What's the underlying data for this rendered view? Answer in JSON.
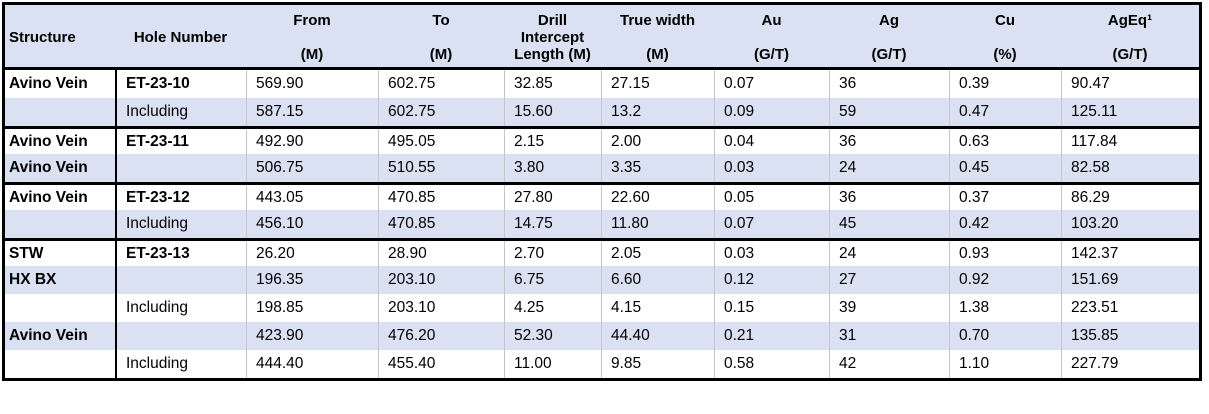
{
  "colors": {
    "header_bg": "#d9e1f2",
    "alt_row_bg": "#d9e1f2",
    "row_bg": "#ffffff",
    "border": "#000000",
    "gridline": "#c6c6c6"
  },
  "table": {
    "columns": [
      {
        "id": "structure",
        "lines": [
          "Structure"
        ]
      },
      {
        "id": "hole",
        "lines": [
          "Hole Number"
        ]
      },
      {
        "id": "from",
        "lines": [
          "From",
          "(M)"
        ]
      },
      {
        "id": "to",
        "lines": [
          "To",
          "(M)"
        ]
      },
      {
        "id": "intercept",
        "lines": [
          "Drill",
          "Intercept",
          "Length (M)"
        ]
      },
      {
        "id": "truewidth",
        "lines": [
          "True width",
          "(M)"
        ]
      },
      {
        "id": "au",
        "lines": [
          "Au",
          "(G/T)"
        ]
      },
      {
        "id": "ag",
        "lines": [
          "Ag",
          "(G/T)"
        ]
      },
      {
        "id": "cu",
        "lines": [
          "Cu",
          "(%)"
        ]
      },
      {
        "id": "ageq",
        "lines": [
          "AgEq¹",
          "(G/T)"
        ]
      }
    ],
    "rows": [
      {
        "structure": "Avino Vein",
        "hole": "ET-23-10",
        "from": "569.90",
        "to": "602.75",
        "intercept": "32.85",
        "truewidth": "27.15",
        "au": "0.07",
        "ag": "36",
        "cu": "0.39",
        "ageq": "90.47"
      },
      {
        "structure": "",
        "hole": "Including",
        "from": "587.15",
        "to": "602.75",
        "intercept": "15.60",
        "truewidth": "13.2",
        "au": "0.09",
        "ag": "59",
        "cu": "0.47",
        "ageq": "125.11"
      },
      {
        "structure": "Avino Vein",
        "hole": "ET-23-11",
        "from": "492.90",
        "to": "495.05",
        "intercept": "2.15",
        "truewidth": "2.00",
        "au": "0.04",
        "ag": "36",
        "cu": "0.63",
        "ageq": "117.84"
      },
      {
        "structure": "Avino Vein",
        "hole": "",
        "from": "506.75",
        "to": "510.55",
        "intercept": "3.80",
        "truewidth": "3.35",
        "au": "0.03",
        "ag": "24",
        "cu": "0.45",
        "ageq": "82.58"
      },
      {
        "structure": "Avino Vein",
        "hole": "ET-23-12",
        "from": "443.05",
        "to": "470.85",
        "intercept": "27.80",
        "truewidth": "22.60",
        "au": "0.05",
        "ag": "36",
        "cu": "0.37",
        "ageq": "86.29"
      },
      {
        "structure": "",
        "hole": "Including",
        "from": "456.10",
        "to": "470.85",
        "intercept": "14.75",
        "truewidth": "11.80",
        "au": "0.07",
        "ag": "45",
        "cu": "0.42",
        "ageq": "103.20"
      },
      {
        "structure": "STW",
        "hole": "ET-23-13",
        "from": "26.20",
        "to": "28.90",
        "intercept": "2.70",
        "truewidth": "2.05",
        "au": "0.03",
        "ag": "24",
        "cu": "0.93",
        "ageq": "142.37"
      },
      {
        "structure": "HX BX",
        "hole": "",
        "from": "196.35",
        "to": "203.10",
        "intercept": "6.75",
        "truewidth": "6.60",
        "au": "0.12",
        "ag": "27",
        "cu": "0.92",
        "ageq": "151.69"
      },
      {
        "structure": "",
        "hole": "Including",
        "from": "198.85",
        "to": "203.10",
        "intercept": "4.25",
        "truewidth": "4.15",
        "au": "0.15",
        "ag": "39",
        "cu": "1.38",
        "ageq": "223.51"
      },
      {
        "structure": "Avino Vein",
        "hole": "",
        "from": "423.90",
        "to": "476.20",
        "intercept": "52.30",
        "truewidth": "44.40",
        "au": "0.21",
        "ag": "31",
        "cu": "0.70",
        "ageq": "135.85"
      },
      {
        "structure": "",
        "hole": "Including",
        "from": "444.40",
        "to": "455.40",
        "intercept": "11.00",
        "truewidth": "9.85",
        "au": "0.58",
        "ag": "42",
        "cu": "1.10",
        "ageq": "227.79"
      }
    ]
  }
}
